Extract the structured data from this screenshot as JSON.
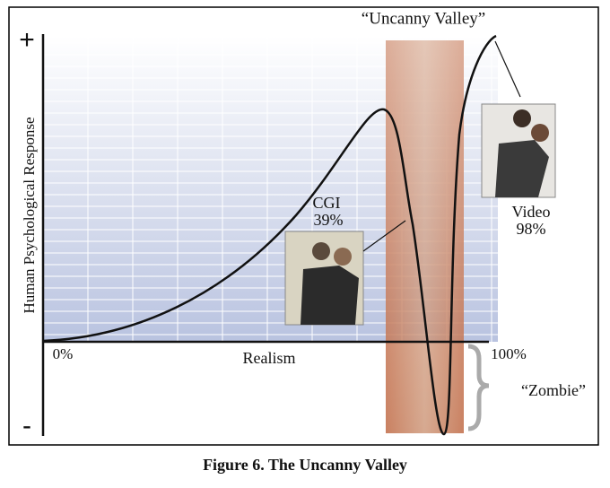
{
  "figure": {
    "valley_label": "“Uncanny Valley”",
    "y_axis": {
      "label": "Human Psychological Response",
      "top": "+",
      "bottom": "-"
    },
    "x_axis": {
      "start": "0%",
      "label": "Realism",
      "end": "100%"
    },
    "zombie_label": "“Zombie”",
    "cgi": {
      "name": "CGI",
      "percent": "39%"
    },
    "video": {
      "name": "Video",
      "percent": "98%"
    },
    "caption": "Figure 6. The Uncanny Valley"
  }
}
